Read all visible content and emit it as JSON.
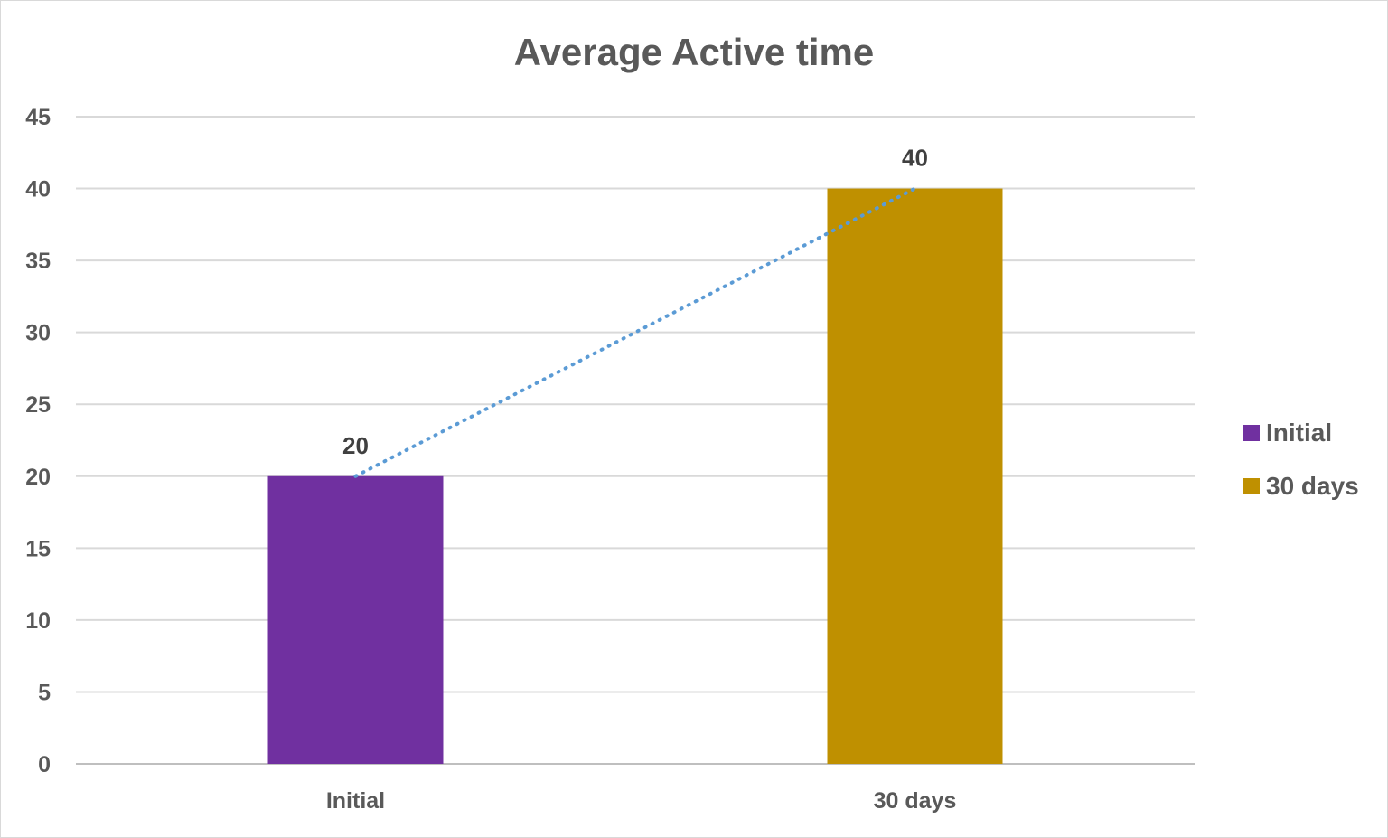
{
  "chart_data": {
    "type": "bar",
    "title": "Average Active time",
    "categories": [
      "Initial",
      "30 days"
    ],
    "values": [
      20,
      40
    ],
    "data_labels": [
      "20",
      "40"
    ],
    "ylim": [
      0,
      45
    ],
    "y_ticks": [
      "0",
      "5",
      "10",
      "15",
      "20",
      "25",
      "30",
      "35",
      "40",
      "45"
    ],
    "y_tick_values": [
      0,
      5,
      10,
      15,
      20,
      25,
      30,
      35,
      40,
      45
    ],
    "grid": true,
    "legend_position": "right",
    "legend": [
      {
        "label": "Initial",
        "color": "#7030a0"
      },
      {
        "label": "30 days",
        "color": "#bf9000"
      }
    ],
    "bar_colors": [
      "#7030a0",
      "#bf9000"
    ],
    "trendline": {
      "type": "linear",
      "style": "dotted",
      "color": "#5b9bd5"
    }
  }
}
